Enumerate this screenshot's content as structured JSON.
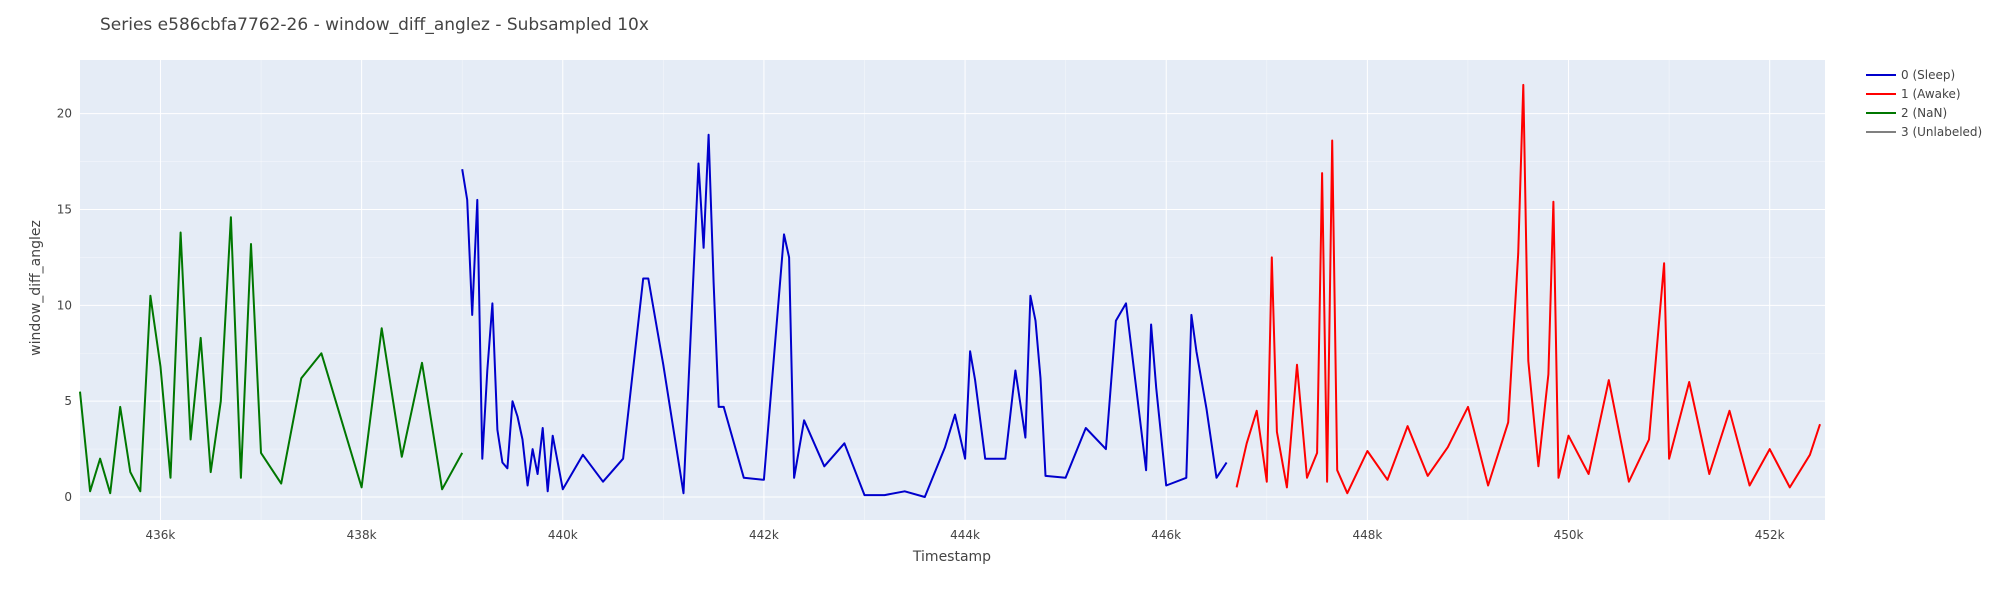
{
  "chart_data": {
    "type": "line",
    "title": "Series e586cbfa7762-26 - window_diff_anglez - Subsampled 10x",
    "xlabel": "Timestamp",
    "ylabel": "window_diff_anglez",
    "xlim": [
      435200,
      452550
    ],
    "ylim": [
      -1.2,
      22.8
    ],
    "x_ticks": [
      436000,
      438000,
      440000,
      442000,
      444000,
      446000,
      448000,
      450000,
      452000
    ],
    "x_tick_labels": [
      "436k",
      "438k",
      "440k",
      "442k",
      "444k",
      "446k",
      "448k",
      "450k",
      "452k"
    ],
    "y_ticks": [
      0,
      5,
      10,
      15,
      20
    ],
    "y_tick_labels": [
      "0",
      "5",
      "10",
      "15",
      "20"
    ],
    "grid": true,
    "legend_position": "top-right",
    "series": [
      {
        "name": "0 (Sleep)",
        "color": "#0000cc",
        "x": [
          439000,
          439050,
          439100,
          439150,
          439200,
          439250,
          439300,
          439350,
          439400,
          439450,
          439500,
          439550,
          439600,
          439650,
          439700,
          439750,
          439800,
          439850,
          439900,
          440000,
          440200,
          440400,
          440600,
          440800,
          440850,
          441000,
          441200,
          441350,
          441400,
          441450,
          441500,
          441550,
          441600,
          441800,
          442000,
          442200,
          442250,
          442300,
          442400,
          442600,
          442800,
          443000,
          443200,
          443400,
          443600,
          443800,
          443900,
          444000,
          444050,
          444100,
          444200,
          444400,
          444500,
          444600,
          444650,
          444700,
          444750,
          444800,
          445000,
          445200,
          445400,
          445500,
          445600,
          445800,
          445850,
          445900,
          446000,
          446200,
          446250,
          446300,
          446400,
          446500,
          446600
        ],
        "y": [
          17.1,
          15.5,
          9.5,
          15.5,
          2.0,
          6.6,
          10.1,
          3.5,
          1.8,
          1.5,
          5.0,
          4.2,
          3.0,
          0.6,
          2.5,
          1.2,
          3.6,
          0.3,
          3.2,
          0.4,
          2.2,
          0.8,
          2.0,
          11.4,
          11.4,
          6.9,
          0.2,
          17.4,
          13.0,
          18.9,
          11.2,
          4.7,
          4.7,
          1.0,
          0.9,
          13.7,
          12.5,
          1.0,
          4.0,
          1.6,
          2.8,
          0.1,
          0.1,
          0.3,
          0.0,
          2.6,
          4.3,
          2.0,
          7.6,
          6.1,
          2.0,
          2.0,
          6.6,
          3.1,
          10.5,
          9.2,
          6.2,
          1.1,
          1.0,
          3.6,
          2.5,
          9.2,
          10.1,
          1.4,
          9.0,
          5.7,
          0.6,
          1.0,
          9.5,
          7.6,
          4.6,
          1.0,
          1.8
        ]
      },
      {
        "name": "1 (Awake)",
        "color": "#ff0000",
        "x": [
          446700,
          446800,
          446900,
          447000,
          447050,
          447100,
          447200,
          447300,
          447400,
          447500,
          447550,
          447600,
          447650,
          447700,
          447800,
          448000,
          448200,
          448400,
          448600,
          448800,
          449000,
          449200,
          449400,
          449500,
          449550,
          449600,
          449700,
          449800,
          449850,
          449900,
          450000,
          450200,
          450400,
          450600,
          450800,
          450950,
          451000,
          451200,
          451400,
          451600,
          451800,
          452000,
          452200,
          452400,
          452500
        ],
        "y": [
          0.5,
          2.8,
          4.5,
          0.8,
          12.5,
          3.4,
          0.5,
          6.9,
          1.0,
          2.3,
          16.9,
          0.8,
          18.6,
          1.4,
          0.2,
          2.4,
          0.9,
          3.7,
          1.1,
          2.6,
          4.7,
          0.6,
          3.9,
          12.7,
          21.5,
          7.1,
          1.6,
          6.4,
          15.4,
          1.0,
          3.2,
          1.2,
          6.1,
          0.8,
          3.0,
          12.2,
          2.0,
          6.0,
          1.2,
          4.5,
          0.6,
          2.5,
          0.5,
          2.2,
          3.8
        ]
      },
      {
        "name": "2 (NaN)",
        "color": "#007700",
        "x": [
          435200,
          435300,
          435400,
          435500,
          435600,
          435700,
          435800,
          435900,
          436000,
          436100,
          436200,
          436300,
          436400,
          436500,
          436600,
          436700,
          436800,
          436900,
          437000,
          437200,
          437400,
          437600,
          437800,
          438000,
          438200,
          438400,
          438600,
          438800,
          439000
        ],
        "y": [
          5.5,
          0.3,
          2.0,
          0.2,
          4.7,
          1.3,
          0.3,
          10.5,
          6.8,
          1.0,
          13.8,
          3.0,
          8.3,
          1.3,
          5.0,
          14.6,
          1.0,
          13.2,
          2.3,
          0.7,
          6.2,
          7.5,
          4.0,
          0.5,
          8.8,
          2.1,
          7.0,
          0.4,
          2.3
        ]
      },
      {
        "name": "3 (Unlabeled)",
        "color": "#808080",
        "x": [],
        "y": []
      }
    ]
  }
}
